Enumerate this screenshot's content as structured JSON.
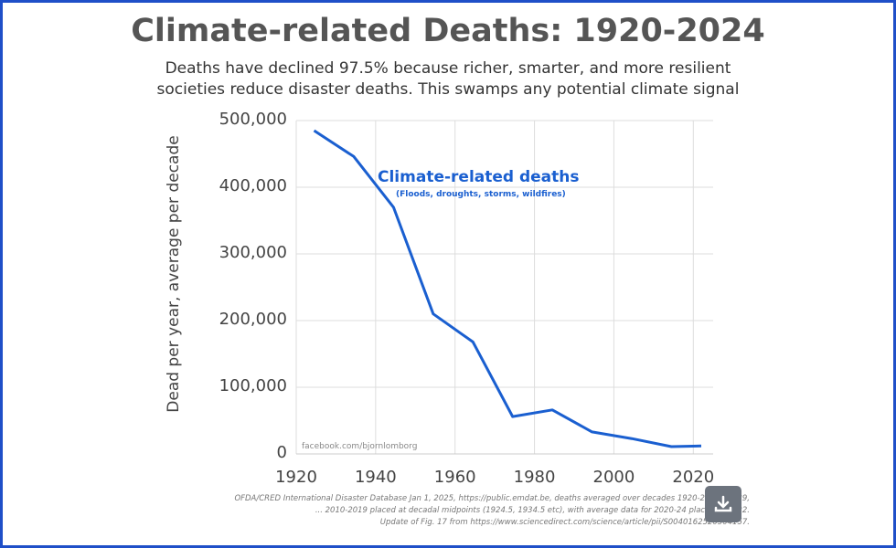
{
  "title": "Climate-related Deaths: 1920-2024",
  "subtitle_line1": "Deaths have declined 97.5% because richer, smarter, and more resilient",
  "subtitle_line2": "societies reduce disaster deaths. This swamps any potential climate signal",
  "chart_data": {
    "type": "line",
    "title": "Climate-related Deaths: 1920-2024",
    "ylabel": "Dead per year, average per decade",
    "xlabel": "",
    "xlim": [
      1920,
      2025
    ],
    "ylim": [
      0,
      500000
    ],
    "grid": true,
    "x_ticks": [
      "1920",
      "1940",
      "1960",
      "1980",
      "2000",
      "2020"
    ],
    "y_ticks": [
      "0",
      "100,000",
      "200,000",
      "300,000",
      "400,000",
      "500,000"
    ],
    "series": [
      {
        "name": "Climate-related deaths",
        "color": "#1a5fd0",
        "x": [
          1924.5,
          1934.5,
          1944.5,
          1954.5,
          1964.5,
          1974.5,
          1984.5,
          1994.5,
          2004.5,
          2014.5,
          2022
        ],
        "y": [
          485000,
          446000,
          370000,
          210000,
          168000,
          56000,
          66000,
          33000,
          23000,
          11000,
          12000
        ]
      }
    ],
    "annotation_title": "Climate-related deaths",
    "annotation_sub": "(Floods, droughts, storms, wildfires)",
    "credit": "facebook.com/bjornlomborg"
  },
  "source_notes": [
    "OFDA/CRED International Disaster Database Jan 1, 2025,  https://public.emdat.be, deaths averaged over decades 1920-29, 1930-39,",
    "... 2010-2019 placed at decadal midpoints (1924.5, 1934.5 etc), with average data for 2020-24 placed at 2022.",
    "Update of Fig. 17 from https://www.sciencedirect.com/science/article/pii/S0040162520304157."
  ],
  "download_icon": "download-icon",
  "frame_color": "#1f4fc8"
}
